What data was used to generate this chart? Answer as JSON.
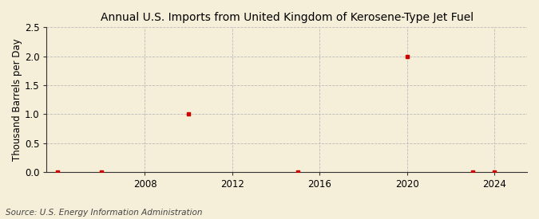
{
  "title": "Annual U.S. Imports from United Kingdom of Kerosene-Type Jet Fuel",
  "ylabel": "Thousand Barrels per Day",
  "source": "Source: U.S. Energy Information Administration",
  "background_color": "#f5eed8",
  "plot_bg_color": "#f5eed8",
  "data_x": [
    2004,
    2006,
    2010,
    2015,
    2020,
    2023,
    2024
  ],
  "data_y": [
    0.0,
    0.0,
    1.0,
    0.0,
    2.0,
    0.0,
    0.0
  ],
  "marker_color": "#cc0000",
  "marker_size": 3.5,
  "xlim": [
    2003.5,
    2025.5
  ],
  "ylim": [
    0,
    2.5
  ],
  "xticks": [
    2008,
    2012,
    2016,
    2020,
    2024
  ],
  "yticks": [
    0.0,
    0.5,
    1.0,
    1.5,
    2.0,
    2.5
  ],
  "grid_color": "#bbbbbb",
  "grid_style": "--",
  "title_fontsize": 10,
  "axis_fontsize": 8.5,
  "source_fontsize": 7.5,
  "tick_fontsize": 8.5
}
